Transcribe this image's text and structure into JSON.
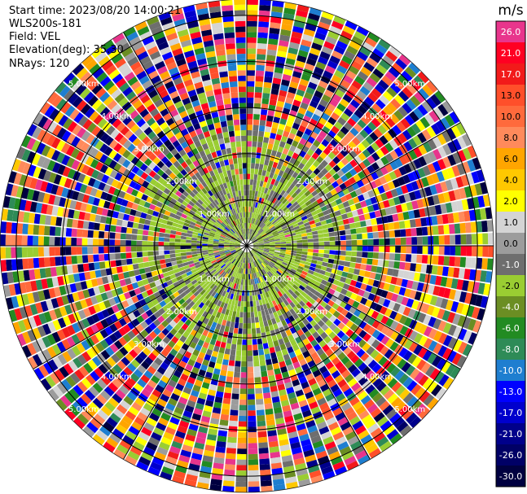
{
  "header": {
    "start_time": "Start time: 2023/08/20 14:00:21",
    "station": "WLS200s-181",
    "field": "Field: VEL",
    "elevation": "Elevation(deg): 35.30",
    "nrays": "NRays: 120"
  },
  "colorbar": {
    "unit": "m/s",
    "levels": [
      {
        "label": "26.0",
        "color": "#e8358c"
      },
      {
        "label": "21.0",
        "color": "#ff0022"
      },
      {
        "label": "17.0",
        "color": "#f21a1a"
      },
      {
        "label": "13.0",
        "color": "#ff4f2a"
      },
      {
        "label": "10.0",
        "color": "#ff6a3c"
      },
      {
        "label": "8.0",
        "color": "#ff8a5b"
      },
      {
        "label": "6.0",
        "color": "#ffa500"
      },
      {
        "label": "4.0",
        "color": "#ffc800"
      },
      {
        "label": "2.0",
        "color": "#ffff00"
      },
      {
        "label": "1.0",
        "color": "#d4d4d4"
      },
      {
        "label": "0.0",
        "color": "#9c9c9c"
      },
      {
        "label": "-1.0",
        "color": "#6e6e6e"
      },
      {
        "label": "-2.0",
        "color": "#9acd32"
      },
      {
        "label": "-4.0",
        "color": "#6b8e23"
      },
      {
        "label": "-6.0",
        "color": "#228b22"
      },
      {
        "label": "-8.0",
        "color": "#2e8b57"
      },
      {
        "label": "-10.0",
        "color": "#1e7ed0"
      },
      {
        "label": "-13.0",
        "color": "#0000ff"
      },
      {
        "label": "-17.0",
        "color": "#0000cd"
      },
      {
        "label": "-21.0",
        "color": "#00008b"
      },
      {
        "label": "-26.0",
        "color": "#000066"
      },
      {
        "label": "-30.0",
        "color": "#000040"
      }
    ]
  },
  "chart_data": {
    "type": "heatmap",
    "projection": "polar-ppi",
    "field": "VEL",
    "unit": "m/s",
    "n_rays": 120,
    "range_rings_km": [
      1.0,
      2.0,
      3.0,
      4.0,
      5.0
    ],
    "ring_labels": [
      "1.00km",
      "2.00km",
      "3.00km",
      "4.00km",
      "5.00km"
    ],
    "max_range_km": 5.35,
    "vmin": -30.0,
    "vmax": 26.0,
    "near_field_velocity_mps": [
      -2.0,
      0.0
    ],
    "far_field": "noisy, all colorbar classes present",
    "grid": true
  }
}
